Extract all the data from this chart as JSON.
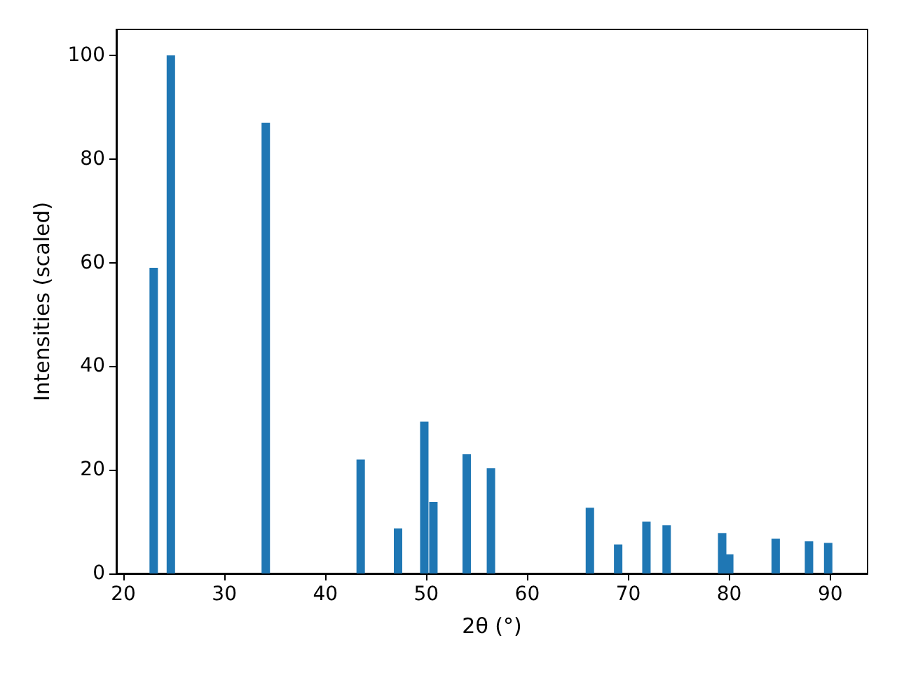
{
  "chart_data": {
    "type": "bar",
    "xlabel": "2θ (°)",
    "ylabel": "Intensities (scaled)",
    "color": "#1f77b4",
    "x": [
      23.0,
      24.7,
      34.1,
      43.5,
      47.2,
      49.8,
      50.7,
      54.0,
      56.4,
      66.2,
      69.0,
      71.8,
      73.8,
      79.3,
      80.0,
      84.6,
      87.9,
      89.8
    ],
    "values": [
      59,
      100,
      87,
      22,
      8.7,
      29.3,
      13.8,
      23.0,
      20.3,
      12.7,
      5.6,
      10,
      9.3,
      7.8,
      3.7,
      6.7,
      6.2,
      5.9
    ],
    "xlim": [
      19.3,
      93.7
    ],
    "xticks": [
      20,
      30,
      40,
      50,
      60,
      70,
      80,
      90
    ],
    "ylim": [
      0,
      105
    ],
    "yticks": [
      0,
      20,
      40,
      60,
      80,
      100
    ],
    "grid": false
  }
}
